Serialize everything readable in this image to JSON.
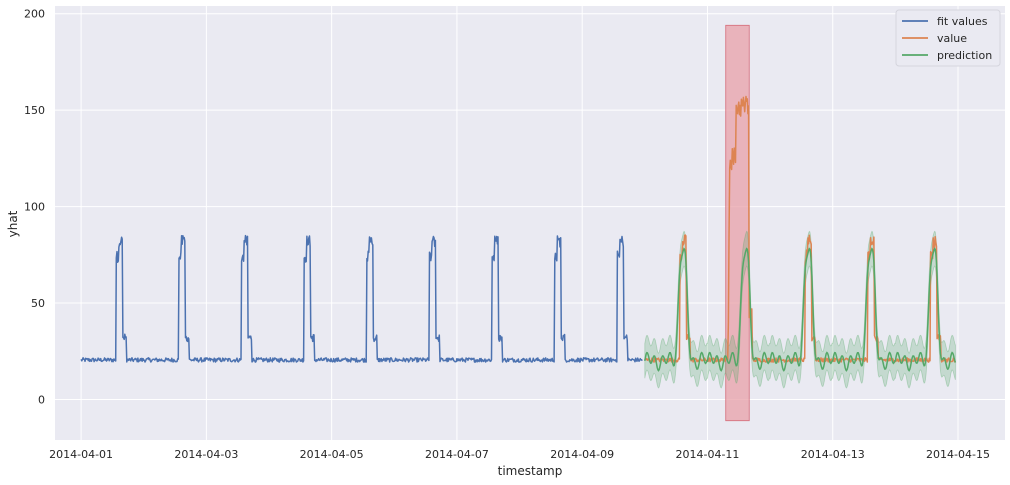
{
  "chart_data": {
    "type": "line",
    "xlabel": "timestamp",
    "ylabel": "yhat",
    "x_ticks": [
      "2014-04-01",
      "2014-04-03",
      "2014-04-05",
      "2014-04-07",
      "2014-04-09",
      "2014-04-11",
      "2014-04-13",
      "2014-04-15"
    ],
    "y_ticks": [
      "0",
      "50",
      "100",
      "150",
      "200"
    ],
    "xlim": [
      "2014-03-31T14:00",
      "2014-04-15T18:00"
    ],
    "ylim": [
      -21,
      204
    ],
    "grid": true,
    "legend_position": "top-right",
    "colors": {
      "background": "#eaeaf2",
      "grid": "#ffffff",
      "fit": "#4c72b0",
      "value": "#dd8452",
      "prediction": "#55a868",
      "band": "#55a868",
      "anomaly": "#e8a0a8"
    },
    "series": [
      {
        "name": "fit values",
        "key": "fit",
        "range": [
          "2014-04-01",
          "2014-04-09T23:00"
        ],
        "baseline": 20.5,
        "daily_high": {
          "start_hour": 13.5,
          "step_hour": 14.4,
          "end_hour": 16.0,
          "first": 74,
          "second": 82,
          "noise": 6
        },
        "tail": {
          "end_hour": 17.5,
          "value": 32
        }
      },
      {
        "name": "value",
        "key": "value",
        "range": [
          "2014-04-10",
          "2014-04-14T23:00"
        ],
        "baseline": 20.5,
        "daily_high": {
          "start_hour": 13.5,
          "step_hour": 14.4,
          "end_hour": 16.0,
          "first": 74,
          "second": 82,
          "noise": 7
        },
        "tail": {
          "end_hour": 17.5,
          "value": 32
        },
        "anomaly_day": {
          "date": "2014-04-11",
          "start_hour": 8.0,
          "step1_hour": 8.4,
          "step2_hour": 11.0,
          "end_hour": 16.0,
          "v1": 125,
          "v2": 152,
          "noise": 12
        }
      },
      {
        "name": "prediction",
        "key": "prediction",
        "range": [
          "2014-04-10",
          "2014-04-14T23:00"
        ],
        "low": 20,
        "high": 80,
        "wiggle": 5,
        "band_width": 9
      }
    ],
    "anomaly_window": {
      "x_start": "2014-04-11T07:00",
      "x_end": "2014-04-11T16:00",
      "y_low": -11,
      "y_high": 194
    }
  }
}
